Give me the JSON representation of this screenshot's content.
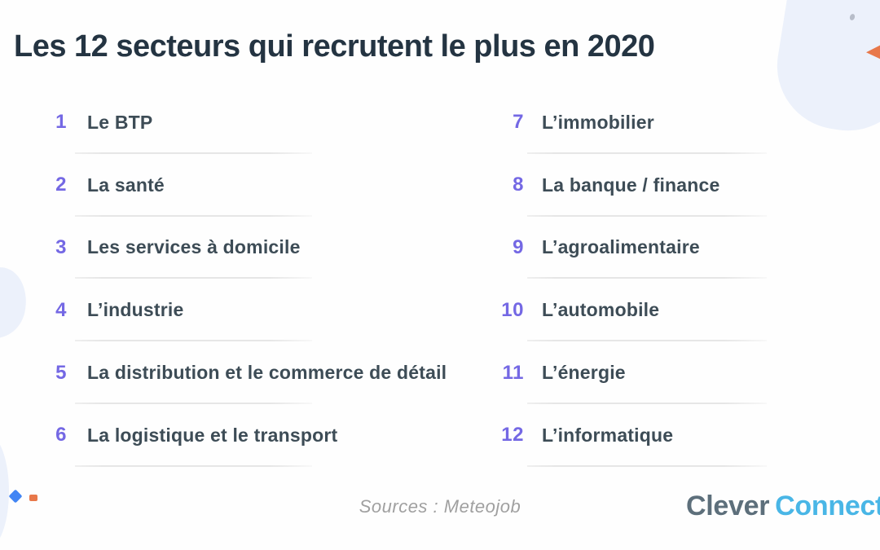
{
  "page": {
    "title": "Les 12 secteurs qui recrutent le plus en 2020",
    "source": "Sources : Meteojob",
    "logo": {
      "part1": "Clever",
      "part2": "Connect"
    }
  },
  "sectors": {
    "left": [
      {
        "number": "1",
        "label": "Le BTP"
      },
      {
        "number": "2",
        "label": "La santé"
      },
      {
        "number": "3",
        "label": "Les services à domicile"
      },
      {
        "number": "4",
        "label": "L’industrie"
      },
      {
        "number": "5",
        "label": "La distribution et le commerce de détail"
      },
      {
        "number": "6",
        "label": "La logistique et le transport"
      }
    ],
    "right": [
      {
        "number": "7",
        "label": "L’immobilier"
      },
      {
        "number": "8",
        "label": "La banque / finance"
      },
      {
        "number": "9",
        "label": "L’agroalimentaire"
      },
      {
        "number": "10",
        "label": "L’automobile"
      },
      {
        "number": "11",
        "label": "L’énergie"
      },
      {
        "number": "12",
        "label": "L’informatique"
      }
    ]
  },
  "colors": {
    "title": "#243442",
    "number": "#7468e4",
    "label": "#3d4c56",
    "source": "#a0a0a0",
    "logo_clever": "#5d6f7b",
    "logo_connect": "#49b6e6",
    "blob": "#ecf1fb",
    "dot": "#b7bdc9",
    "diamond": "#4285f4",
    "orange": "#e8784a"
  }
}
